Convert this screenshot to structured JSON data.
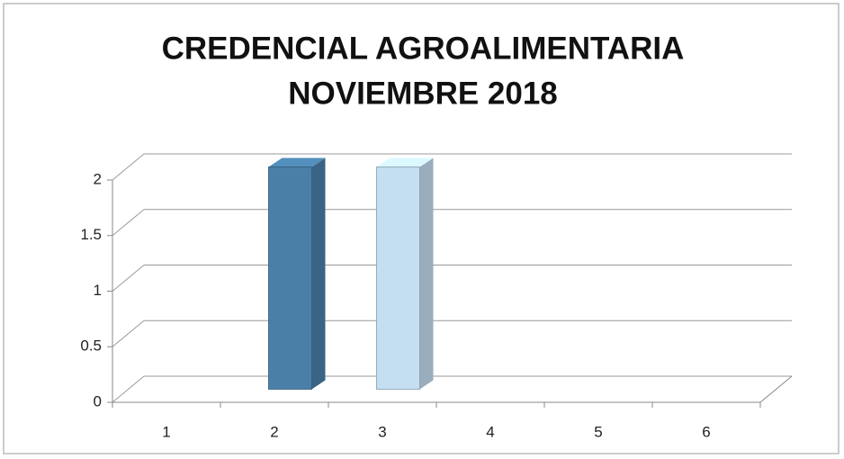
{
  "chart_data": {
    "type": "bar3d",
    "title": [
      "CREDENCIAL AGROALIMENTARIA",
      "NOVIEMBRE 2018"
    ],
    "categories": [
      "1",
      "2",
      "3",
      "4",
      "5",
      "6"
    ],
    "values": [
      0,
      2,
      2,
      0,
      0,
      0
    ],
    "colors": [
      "#4a80a8",
      "#4a80a8",
      "#c4def2",
      "#4a80a8",
      "#4a80a8",
      "#4a80a8"
    ],
    "ylim": [
      0,
      2
    ],
    "yticks": [
      0,
      0.5,
      1,
      1.5,
      2
    ],
    "grid": true
  }
}
